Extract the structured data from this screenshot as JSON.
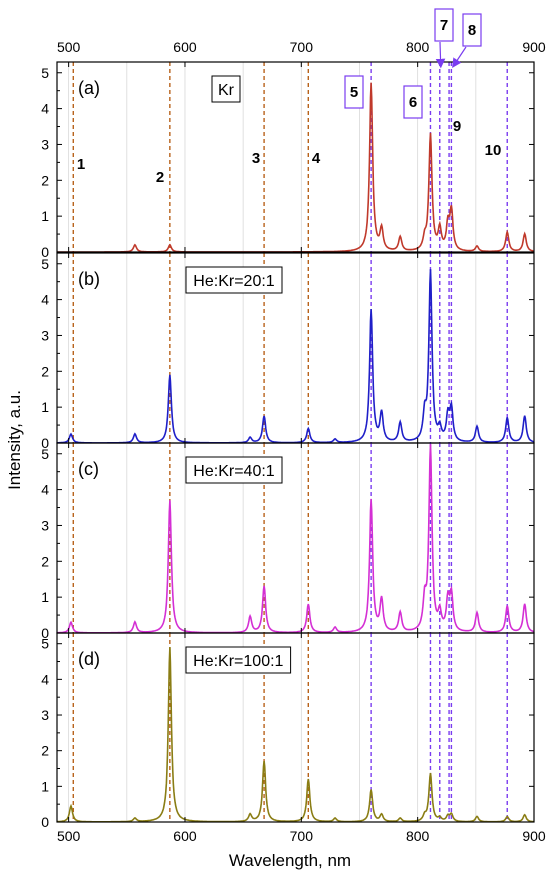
{
  "chart_data": {
    "type": "line",
    "xlabel": "Wavelength, nm",
    "ylabel": "Intensity, a.u.",
    "xlim": [
      490,
      900
    ],
    "ylim": [
      0,
      5.3
    ],
    "x_ticks": [
      500,
      600,
      700,
      800,
      900
    ],
    "y_ticks": [
      0,
      1,
      2,
      3,
      4,
      5
    ],
    "grid": "vertical-minor",
    "line_markers": [
      {
        "label": "1",
        "x": 504,
        "color": "#b8621b",
        "style": "dashed"
      },
      {
        "label": "2",
        "x": 587,
        "color": "#b8621b",
        "style": "dashed"
      },
      {
        "label": "3",
        "x": 668,
        "color": "#b8621b",
        "style": "dashed"
      },
      {
        "label": "4",
        "x": 706,
        "color": "#b8621b",
        "style": "dashed"
      },
      {
        "label": "5",
        "x": 760,
        "color": "#7a3cf0",
        "style": "dashed"
      },
      {
        "label": "6",
        "x": 811,
        "color": "#7a3cf0",
        "style": "dashed"
      },
      {
        "label": "7",
        "x": 819,
        "color": "#7a3cf0",
        "style": "dashed"
      },
      {
        "label": "8",
        "x": 829,
        "color": "#7a3cf0",
        "style": "dashed"
      },
      {
        "label": "9",
        "x": 827,
        "color": "#7a3cf0",
        "style": "dashed"
      },
      {
        "label": "10",
        "x": 877,
        "color": "#7a3cf0",
        "style": "dashed"
      }
    ],
    "panels": [
      {
        "label": "(a)",
        "legend": "Kr",
        "color": "#c0392b",
        "peaks": [
          [
            557,
            0.2
          ],
          [
            587,
            0.2
          ],
          [
            760,
            4.7
          ],
          [
            769,
            0.6
          ],
          [
            785,
            0.4
          ],
          [
            806,
            0.3
          ],
          [
            811,
            3.25
          ],
          [
            819,
            0.6
          ],
          [
            826,
            0.7
          ],
          [
            829,
            1.1
          ],
          [
            851,
            0.15
          ],
          [
            877,
            0.55
          ],
          [
            892,
            0.5
          ]
        ]
      },
      {
        "label": "(b)",
        "legend": "He:Kr=20:1",
        "color": "#1f1fc8",
        "peaks": [
          [
            502,
            0.25
          ],
          [
            557,
            0.25
          ],
          [
            587,
            1.9
          ],
          [
            656,
            0.15
          ],
          [
            668,
            0.75
          ],
          [
            706,
            0.4
          ],
          [
            729,
            0.1
          ],
          [
            760,
            3.7
          ],
          [
            769,
            0.8
          ],
          [
            785,
            0.55
          ],
          [
            806,
            0.7
          ],
          [
            811,
            4.75
          ],
          [
            819,
            0.35
          ],
          [
            826,
            0.7
          ],
          [
            829,
            0.9
          ],
          [
            851,
            0.45
          ],
          [
            877,
            0.7
          ],
          [
            892,
            0.75
          ]
        ]
      },
      {
        "label": "(c)",
        "legend": "He:Kr=40:1",
        "color": "#d42fd4",
        "peaks": [
          [
            502,
            0.3
          ],
          [
            557,
            0.3
          ],
          [
            587,
            3.7
          ],
          [
            656,
            0.45
          ],
          [
            668,
            1.3
          ],
          [
            706,
            0.8
          ],
          [
            729,
            0.15
          ],
          [
            760,
            3.7
          ],
          [
            769,
            0.9
          ],
          [
            785,
            0.55
          ],
          [
            806,
            0.8
          ],
          [
            811,
            5.15
          ],
          [
            819,
            0.5
          ],
          [
            826,
            0.85
          ],
          [
            829,
            1.0
          ],
          [
            851,
            0.55
          ],
          [
            877,
            0.75
          ],
          [
            892,
            0.8
          ]
        ]
      },
      {
        "label": "(d)",
        "legend": "He:Kr=100:1",
        "color": "#8a7d14",
        "peaks": [
          [
            502,
            0.45
          ],
          [
            557,
            0.1
          ],
          [
            587,
            4.9
          ],
          [
            656,
            0.2
          ],
          [
            668,
            1.7
          ],
          [
            706,
            1.2
          ],
          [
            729,
            0.1
          ],
          [
            760,
            0.9
          ],
          [
            769,
            0.2
          ],
          [
            785,
            0.1
          ],
          [
            806,
            0.15
          ],
          [
            811,
            1.35
          ],
          [
            819,
            0.1
          ],
          [
            826,
            0.15
          ],
          [
            829,
            0.2
          ],
          [
            851,
            0.15
          ],
          [
            877,
            0.15
          ],
          [
            892,
            0.2
          ]
        ]
      }
    ]
  }
}
